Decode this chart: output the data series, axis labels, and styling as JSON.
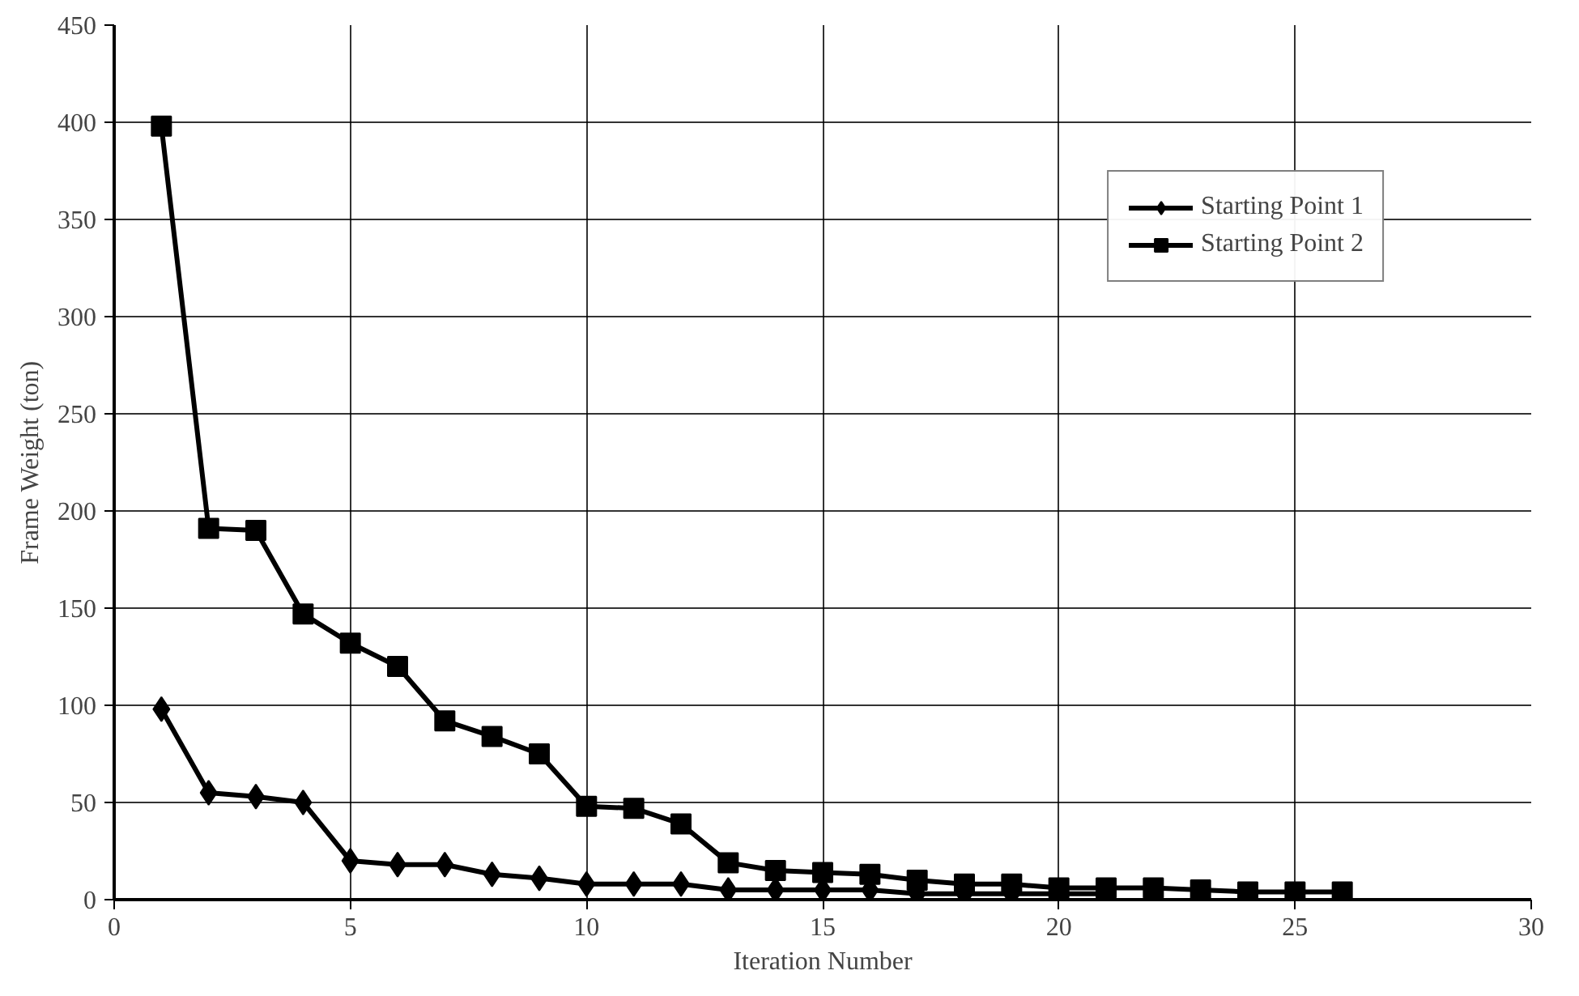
{
  "chart_data": {
    "type": "line",
    "xlabel": "Iteration Number",
    "ylabel": "Frame Weight (ton)",
    "xlim": [
      0,
      30
    ],
    "xticks": [
      0,
      5,
      10,
      15,
      20,
      25,
      30
    ],
    "ylim": [
      0,
      450
    ],
    "yticks": [
      0,
      50,
      100,
      150,
      200,
      250,
      300,
      350,
      400,
      450
    ],
    "grid": true,
    "legend": "top right",
    "series": [
      {
        "name": "Starting Point 1",
        "color": "#000000",
        "marker": "diamond",
        "x": [
          1,
          2,
          3,
          4,
          5,
          6,
          7,
          8,
          9,
          10,
          11,
          12,
          13,
          14,
          15,
          16,
          17,
          18,
          19,
          20,
          21
        ],
        "values": [
          98,
          55,
          53,
          50,
          20,
          18,
          18,
          13,
          11,
          8,
          8,
          8,
          5,
          5,
          5,
          5,
          3,
          3,
          3,
          3,
          3
        ]
      },
      {
        "name": "Starting Point 2",
        "color": "#000000",
        "marker": "square",
        "x": [
          1,
          2,
          3,
          4,
          5,
          6,
          7,
          8,
          9,
          10,
          11,
          12,
          13,
          14,
          15,
          16,
          17,
          18,
          19,
          20,
          21,
          22,
          23,
          24,
          25,
          26
        ],
        "values": [
          398,
          191,
          190,
          147,
          132,
          120,
          92,
          84,
          75,
          48,
          47,
          39,
          19,
          15,
          14,
          13,
          10,
          8,
          8,
          6,
          6,
          6,
          5,
          4,
          4,
          4
        ]
      }
    ]
  }
}
